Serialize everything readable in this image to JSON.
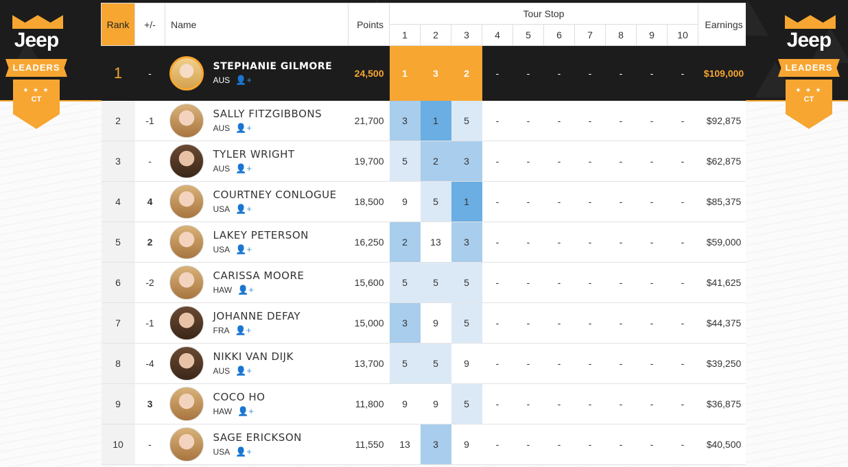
{
  "badge": {
    "brand": "Jeep",
    "ribbon": "LEADERS",
    "emblem": "CT",
    "stars": "★ ★ ★"
  },
  "header": {
    "rank": "Rank",
    "change": "+/-",
    "name": "Name",
    "points": "Points",
    "tour_stop": "Tour Stop",
    "stops": [
      "1",
      "2",
      "3",
      "4",
      "5",
      "6",
      "7",
      "8",
      "9",
      "10"
    ],
    "earnings": "Earnings"
  },
  "colors": {
    "accent": "#f7a632",
    "dark": "#1c1c1c",
    "up": "#6ab825",
    "down": "#d0342c",
    "stop_win": "#6aaee4",
    "stop_mid": "#a9cdec",
    "stop_low": "#dbe9f7"
  },
  "leader": {
    "rank": "1",
    "change": "-",
    "name": "STEPHANIE GILMORE",
    "country": "AUS",
    "points": "24,500",
    "stops": [
      "1",
      "3",
      "2",
      "-",
      "-",
      "-",
      "-",
      "-",
      "-",
      "-"
    ],
    "earnings": "$109,000"
  },
  "rows": [
    {
      "rank": "2",
      "change": "-1",
      "dir": "down",
      "name": "SALLY FITZGIBBONS",
      "country": "AUS",
      "points": "21,700",
      "stops": [
        "3",
        "1",
        "5",
        "-",
        "-",
        "-",
        "-",
        "-",
        "-",
        "-"
      ],
      "earnings": "$92,875"
    },
    {
      "rank": "3",
      "change": "-",
      "dir": "",
      "name": "TYLER WRIGHT",
      "country": "AUS",
      "points": "19,700",
      "stops": [
        "5",
        "2",
        "3",
        "-",
        "-",
        "-",
        "-",
        "-",
        "-",
        "-"
      ],
      "earnings": "$62,875"
    },
    {
      "rank": "4",
      "change": "4",
      "dir": "up",
      "name": "COURTNEY CONLOGUE",
      "country": "USA",
      "points": "18,500",
      "stops": [
        "9",
        "5",
        "1",
        "-",
        "-",
        "-",
        "-",
        "-",
        "-",
        "-"
      ],
      "earnings": "$85,375"
    },
    {
      "rank": "5",
      "change": "2",
      "dir": "up",
      "name": "LAKEY PETERSON",
      "country": "USA",
      "points": "16,250",
      "stops": [
        "2",
        "13",
        "3",
        "-",
        "-",
        "-",
        "-",
        "-",
        "-",
        "-"
      ],
      "earnings": "$59,000"
    },
    {
      "rank": "6",
      "change": "-2",
      "dir": "down",
      "name": "CARISSA MOORE",
      "country": "HAW",
      "points": "15,600",
      "stops": [
        "5",
        "5",
        "5",
        "-",
        "-",
        "-",
        "-",
        "-",
        "-",
        "-"
      ],
      "earnings": "$41,625"
    },
    {
      "rank": "7",
      "change": "-1",
      "dir": "down",
      "name": "JOHANNE DEFAY",
      "country": "FRA",
      "points": "15,000",
      "stops": [
        "3",
        "9",
        "5",
        "-",
        "-",
        "-",
        "-",
        "-",
        "-",
        "-"
      ],
      "earnings": "$44,375"
    },
    {
      "rank": "8",
      "change": "-4",
      "dir": "down",
      "name": "NIKKI VAN DIJK",
      "country": "AUS",
      "points": "13,700",
      "stops": [
        "5",
        "5",
        "9",
        "-",
        "-",
        "-",
        "-",
        "-",
        "-",
        "-"
      ],
      "earnings": "$39,250"
    },
    {
      "rank": "9",
      "change": "3",
      "dir": "up",
      "name": "COCO HO",
      "country": "HAW",
      "points": "11,800",
      "stops": [
        "9",
        "9",
        "5",
        "-",
        "-",
        "-",
        "-",
        "-",
        "-",
        "-"
      ],
      "earnings": "$36,875"
    },
    {
      "rank": "10",
      "change": "-",
      "dir": "",
      "name": "SAGE ERICKSON",
      "country": "USA",
      "points": "11,550",
      "stops": [
        "13",
        "3",
        "9",
        "-",
        "-",
        "-",
        "-",
        "-",
        "-",
        "-"
      ],
      "earnings": "$40,500"
    }
  ]
}
